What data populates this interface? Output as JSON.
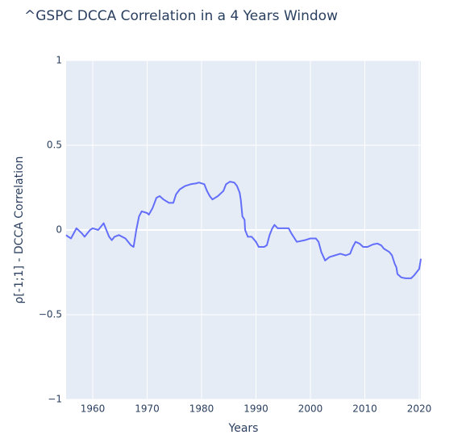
{
  "chart_data": {
    "type": "line",
    "title": "^GSPC DCCA Correlation in a 4 Years Window",
    "xlabel": "Years",
    "ylabel": "ρ[-1;1] - DCCA Correlation",
    "xlim": [
      1955.1,
      2020.3
    ],
    "ylim": [
      -1,
      1
    ],
    "xticks": [
      1960,
      1970,
      1980,
      1990,
      2000,
      2010,
      2020
    ],
    "yticks": [
      {
        "value": -1,
        "label": "−1"
      },
      {
        "value": -0.5,
        "label": "−0.5"
      },
      0,
      0.5,
      1
    ],
    "grid": true,
    "series": [
      {
        "color": "#636efa",
        "x": [
          1955.1,
          1955.5,
          1956,
          1957,
          1958,
          1958.5,
          1959.5,
          1960,
          1961,
          1962,
          1963,
          1963.5,
          1964,
          1964.8,
          1966,
          1967,
          1967.5,
          1968,
          1968.5,
          1969,
          1970,
          1970.3,
          1971,
          1971.7,
          1972.3,
          1973,
          1974,
          1974.8,
          1975.3,
          1976,
          1977,
          1978,
          1979,
          1979.5,
          1980.5,
          1981,
          1981.5,
          1982,
          1983,
          1984,
          1984.5,
          1985.2,
          1986,
          1986.5,
          1987,
          1987.2,
          1987.5,
          1987.9,
          1988,
          1988.5,
          1989.2,
          1990,
          1990.5,
          1991.5,
          1992,
          1992.5,
          1993,
          1993.4,
          1994,
          1995,
          1996,
          1996.5,
          1997.5,
          1999,
          2000,
          2001,
          2001.5,
          2002,
          2002.7,
          2003.5,
          2004.5,
          2005.5,
          2006.5,
          2007.3,
          2007.8,
          2008.3,
          2009,
          2009.7,
          2010.5,
          2011.5,
          2012.3,
          2013,
          2013.5,
          2014.5,
          2015,
          2015.5,
          2015.8,
          2016,
          2016.7,
          2017.5,
          2018.5,
          2019,
          2020,
          2020.3
        ],
        "values": [
          -0.03,
          -0.04,
          -0.05,
          0.01,
          -0.02,
          -0.04,
          0.0,
          0.01,
          0.0,
          0.04,
          -0.04,
          -0.06,
          -0.04,
          -0.03,
          -0.05,
          -0.09,
          -0.1,
          0.0,
          0.08,
          0.11,
          0.1,
          0.09,
          0.13,
          0.19,
          0.2,
          0.18,
          0.16,
          0.16,
          0.21,
          0.24,
          0.26,
          0.27,
          0.275,
          0.28,
          0.27,
          0.23,
          0.2,
          0.18,
          0.2,
          0.23,
          0.27,
          0.285,
          0.28,
          0.26,
          0.22,
          0.18,
          0.08,
          0.06,
          0.0,
          -0.04,
          -0.04,
          -0.07,
          -0.1,
          -0.1,
          -0.09,
          -0.03,
          0.01,
          0.03,
          0.01,
          0.01,
          0.01,
          -0.02,
          -0.07,
          -0.06,
          -0.05,
          -0.05,
          -0.07,
          -0.13,
          -0.18,
          -0.16,
          -0.15,
          -0.14,
          -0.15,
          -0.14,
          -0.1,
          -0.07,
          -0.08,
          -0.1,
          -0.1,
          -0.085,
          -0.08,
          -0.09,
          -0.11,
          -0.13,
          -0.15,
          -0.2,
          -0.22,
          -0.26,
          -0.28,
          -0.285,
          -0.285,
          -0.27,
          -0.23,
          -0.17
        ]
      }
    ]
  }
}
